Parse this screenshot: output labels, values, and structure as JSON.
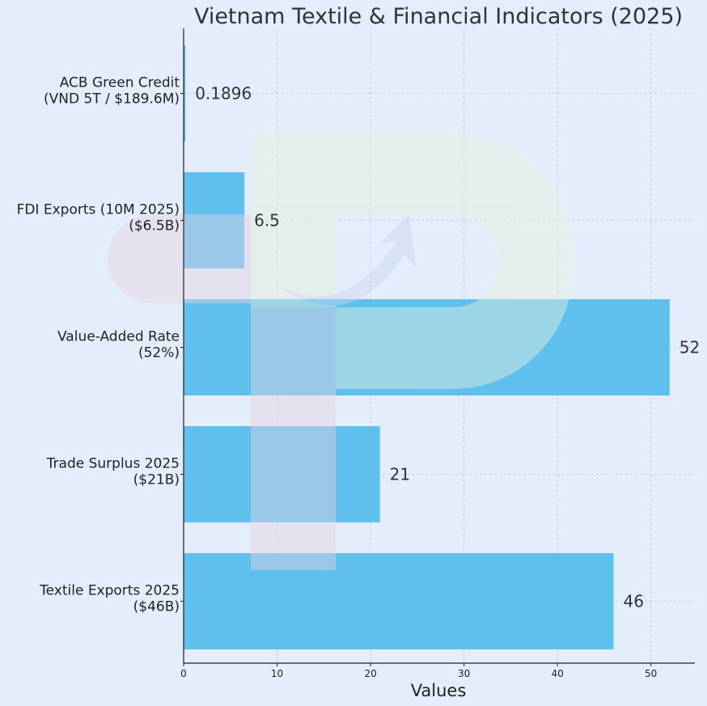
{
  "chart_data": {
    "type": "bar",
    "orientation": "horizontal",
    "title": "Vietnam Textile & Financial Indicators (2025)",
    "xlabel": "Values",
    "ylabel": "",
    "xlim": [
      0,
      54.7
    ],
    "xticks": [
      0,
      10,
      20,
      30,
      40,
      50
    ],
    "grid": true,
    "bar_color": "#5fc0ee",
    "background": "#e3edfb",
    "categories": [
      [
        "ACB Green Credit",
        "(VND 5T / $189.6M)"
      ],
      [
        "FDI Exports (10M 2025)",
        "($6.5B)"
      ],
      [
        "Value-Added Rate",
        "(52%)"
      ],
      [
        "Trade Surplus 2025",
        "($21B)"
      ],
      [
        "Textile Exports 2025",
        "($46B)"
      ]
    ],
    "values": [
      0.1896,
      6.5,
      52,
      21,
      46
    ],
    "data_labels": [
      "0.1896",
      "6.5",
      "52",
      "21",
      "46"
    ]
  }
}
